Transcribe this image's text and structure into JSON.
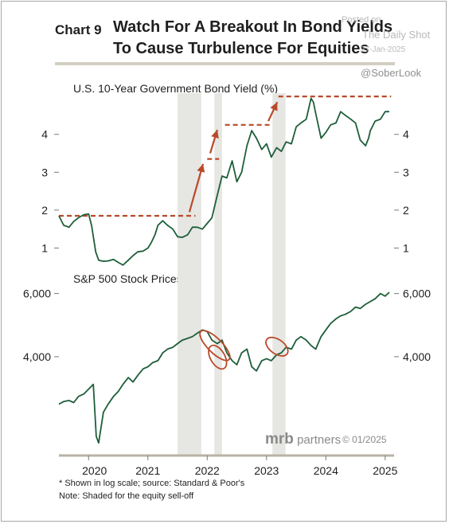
{
  "header": {
    "chart_number": "Chart 9",
    "title_line1": "Watch For A Breakout In Bond Yields",
    "title_line2": "To Cause Turbulence For Equities"
  },
  "watermark": {
    "posted_on": "Posted on",
    "source": "The Daily Shot",
    "date": "27-Jan-2025",
    "handle": "@SoberLook"
  },
  "branding": {
    "brand": "mrb",
    "brand_rest": " partners",
    "date": "© 01/2025"
  },
  "footnotes": {
    "line1": "* Shown in log scale; source: Standard & Poor's",
    "line2": "Note: Shaded for the equity sell-off"
  },
  "colors": {
    "line": "#1e5e3a",
    "arrow": "#b84a2a",
    "shade": "#e6e6e3",
    "rule": "#d3cfc2"
  },
  "chart_data": [
    {
      "type": "line",
      "title": "U.S. 10-Year Government Bond Yield (%)",
      "x_ticks": [
        "2020",
        "2021",
        "2022",
        "2023",
        "2024",
        "2025"
      ],
      "y_ticks": [
        1,
        2,
        3,
        4
      ],
      "ylim": [
        0.4,
        5.15
      ],
      "xlim": [
        2019.5,
        2025.15
      ],
      "shaded_periods": [
        [
          2021.5,
          2021.9
        ],
        [
          2022.12,
          2022.25
        ],
        [
          2023.1,
          2023.32
        ]
      ],
      "breakout_levels": [
        {
          "x": [
            2019.5,
            2021.8
          ],
          "y": 1.85
        },
        {
          "x": [
            2022.0,
            2022.2
          ],
          "y": 3.35
        },
        {
          "x": [
            2022.3,
            2023.05
          ],
          "y": 4.25
        },
        {
          "x": [
            2023.2,
            2025.1
          ],
          "y": 5.0
        }
      ],
      "breakout_arrows": [
        {
          "from": [
            2021.7,
            1.95
          ],
          "to": [
            2021.93,
            3.22
          ]
        },
        {
          "from": [
            2022.05,
            3.5
          ],
          "to": [
            2022.17,
            4.12
          ]
        },
        {
          "from": [
            2023.03,
            4.35
          ],
          "to": [
            2023.18,
            4.85
          ]
        }
      ],
      "series": [
        {
          "x": [
            2019.5,
            2019.58,
            2019.67,
            2019.75,
            2019.83,
            2019.92,
            2020.0,
            2020.05,
            2020.12,
            2020.17,
            2020.25,
            2020.33,
            2020.42,
            2020.5,
            2020.58,
            2020.67,
            2020.75,
            2020.83,
            2020.92,
            2021.0,
            2021.06,
            2021.12,
            2021.17,
            2021.25,
            2021.33,
            2021.42,
            2021.5,
            2021.58,
            2021.67,
            2021.75,
            2021.83,
            2021.92,
            2022.0,
            2022.08,
            2022.17,
            2022.25,
            2022.33,
            2022.42,
            2022.5,
            2022.58,
            2022.67,
            2022.75,
            2022.83,
            2022.92,
            2023.0,
            2023.08,
            2023.17,
            2023.25,
            2023.33,
            2023.42,
            2023.5,
            2023.58,
            2023.67,
            2023.75,
            2023.79,
            2023.83,
            2023.92,
            2024.0,
            2024.08,
            2024.17,
            2024.25,
            2024.33,
            2024.42,
            2024.5,
            2024.58,
            2024.67,
            2024.72,
            2024.75,
            2024.83,
            2024.92,
            2025.0,
            2025.07
          ],
          "values": [
            1.85,
            1.6,
            1.55,
            1.7,
            1.8,
            1.88,
            1.9,
            1.6,
            0.9,
            0.68,
            0.65,
            0.66,
            0.7,
            0.62,
            0.55,
            0.68,
            0.8,
            0.9,
            0.92,
            1.0,
            1.15,
            1.35,
            1.6,
            1.72,
            1.6,
            1.5,
            1.3,
            1.28,
            1.35,
            1.55,
            1.55,
            1.5,
            1.65,
            1.8,
            2.4,
            2.9,
            2.85,
            3.3,
            2.75,
            3.0,
            3.7,
            4.1,
            3.9,
            3.6,
            3.75,
            3.4,
            3.65,
            3.55,
            3.8,
            3.75,
            4.2,
            4.3,
            4.4,
            4.95,
            4.85,
            4.55,
            3.9,
            4.05,
            4.25,
            4.3,
            4.6,
            4.5,
            4.4,
            4.3,
            3.85,
            3.7,
            3.9,
            4.1,
            4.35,
            4.4,
            4.6,
            4.6
          ]
        }
      ]
    },
    {
      "type": "line",
      "title": "S&P 500 Stock Prices*",
      "scale": "log",
      "x_ticks": [
        "2020",
        "2021",
        "2022",
        "2023",
        "2024",
        "2025"
      ],
      "y_ticks": [
        4000,
        6000
      ],
      "y_tick_labels": [
        "4,000",
        "6,000"
      ],
      "ylim": [
        2100,
        6700
      ],
      "xlim": [
        2019.5,
        2025.15
      ],
      "sell_off_highlights": [
        {
          "x": [
            2021.96,
            2022.3
          ],
          "y": [
            3850,
            4800
          ]
        },
        {
          "x": [
            2022.08,
            2022.27
          ],
          "y": [
            3700,
            4300
          ]
        },
        {
          "x": [
            2023.05,
            2023.3
          ],
          "y": [
            4000,
            4550
          ]
        }
      ],
      "series": [
        {
          "x": [
            2019.5,
            2019.58,
            2019.67,
            2019.75,
            2019.83,
            2019.92,
            2020.0,
            2020.08,
            2020.13,
            2020.17,
            2020.25,
            2020.33,
            2020.42,
            2020.5,
            2020.58,
            2020.67,
            2020.75,
            2020.83,
            2020.92,
            2021.0,
            2021.08,
            2021.17,
            2021.25,
            2021.33,
            2021.42,
            2021.5,
            2021.58,
            2021.67,
            2021.75,
            2021.83,
            2021.92,
            2022.0,
            2022.08,
            2022.17,
            2022.25,
            2022.33,
            2022.42,
            2022.5,
            2022.58,
            2022.67,
            2022.75,
            2022.83,
            2022.92,
            2023.0,
            2023.08,
            2023.17,
            2023.25,
            2023.33,
            2023.42,
            2023.5,
            2023.58,
            2023.67,
            2023.75,
            2023.83,
            2023.92,
            2024.0,
            2024.08,
            2024.17,
            2024.25,
            2024.33,
            2024.42,
            2024.5,
            2024.58,
            2024.67,
            2024.75,
            2024.83,
            2024.92,
            2025.0,
            2025.07
          ],
          "values": [
            2950,
            3000,
            3020,
            2980,
            3100,
            3150,
            3250,
            3350,
            2400,
            2300,
            2800,
            2950,
            3100,
            3200,
            3350,
            3500,
            3400,
            3550,
            3700,
            3750,
            3850,
            3900,
            4100,
            4200,
            4250,
            4350,
            4450,
            4500,
            4550,
            4650,
            4750,
            4700,
            4450,
            4350,
            4450,
            4100,
            3900,
            3800,
            4100,
            4200,
            3750,
            3650,
            3900,
            3950,
            3900,
            4050,
            4100,
            4250,
            4200,
            4450,
            4550,
            4450,
            4300,
            4200,
            4550,
            4750,
            4950,
            5100,
            5200,
            5250,
            5350,
            5500,
            5450,
            5600,
            5700,
            5800,
            6000,
            5900,
            6050
          ]
        }
      ]
    }
  ]
}
